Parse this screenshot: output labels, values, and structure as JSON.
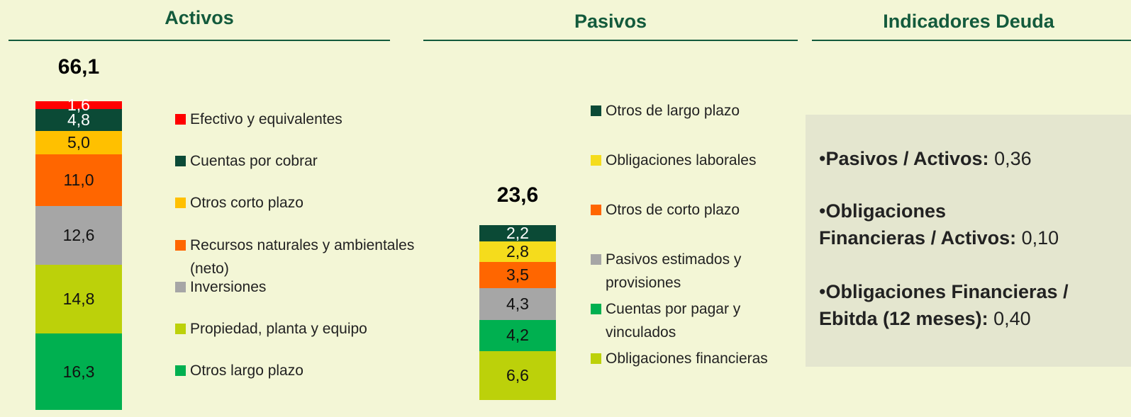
{
  "headers": [
    "Activos",
    "Pasivos",
    "Indicadores Deuda"
  ],
  "chart_data": [
    {
      "type": "stacked-bar",
      "total": 66.1,
      "total_label": "66,1",
      "series": [
        {
          "name": "Efectivo y equivalentes",
          "color": "#ff0000",
          "values": [
            1.6
          ],
          "value_labels": [
            "1,6"
          ]
        },
        {
          "name": "Cuentas por cobrar",
          "color": "#0b4a36",
          "values": [
            4.8
          ],
          "value_labels": [
            "4,8"
          ]
        },
        {
          "name": "Otros corto plazo",
          "color": "#ffc000",
          "values": [
            5.0
          ],
          "value_labels": [
            "5,0"
          ]
        },
        {
          "name": "Recursos naturales y ambientales (neto)",
          "color": "#ff6600",
          "values": [
            11.0
          ],
          "value_labels": [
            "11,0"
          ]
        },
        {
          "name": "Inversiones",
          "color": "#a6a6a6",
          "values": [
            12.6
          ],
          "value_labels": [
            "12,6"
          ]
        },
        {
          "name": "Propiedad, planta y equipo",
          "color": "#bcd10a",
          "values": [
            14.8
          ],
          "value_labels": [
            "14,8"
          ]
        },
        {
          "name": "Otros largo plazo",
          "color": "#00b050",
          "values": [
            16.3
          ],
          "value_labels": [
            "16,3"
          ]
        }
      ]
    },
    {
      "type": "stacked-bar",
      "total": 23.6,
      "total_label": "23,6",
      "series": [
        {
          "name": "Otros de largo plazo",
          "color": "#0b4a36",
          "values": [
            2.2
          ],
          "value_labels": [
            "2,2"
          ]
        },
        {
          "name": "Obligaciones laborales",
          "color": "#f5dc1c",
          "values": [
            2.8
          ],
          "value_labels": [
            "2,8"
          ]
        },
        {
          "name": "Otros de corto plazo",
          "color": "#ff6600",
          "values": [
            3.5
          ],
          "value_labels": [
            "3,5"
          ]
        },
        {
          "name": "Pasivos estimados y provisiones",
          "color": "#a6a6a6",
          "values": [
            4.3
          ],
          "value_labels": [
            "4,3"
          ]
        },
        {
          "name": "Cuentas por pagar y vinculados",
          "color": "#00b050",
          "values": [
            4.2
          ],
          "value_labels": [
            "4,2"
          ]
        },
        {
          "name": "Obligaciones financieras",
          "color": "#bcd10a",
          "values": [
            6.6
          ],
          "value_labels": [
            "6,6"
          ]
        }
      ]
    }
  ],
  "indicators": [
    {
      "label": "Pasivos / Activos:",
      "value": "0,36"
    },
    {
      "label": "Obligaciones\nFinancieras / Activos:",
      "value": "0,10"
    },
    {
      "label": "Obligaciones Financieras / Ebitda (12 meses):",
      "value": "0,40"
    }
  ]
}
